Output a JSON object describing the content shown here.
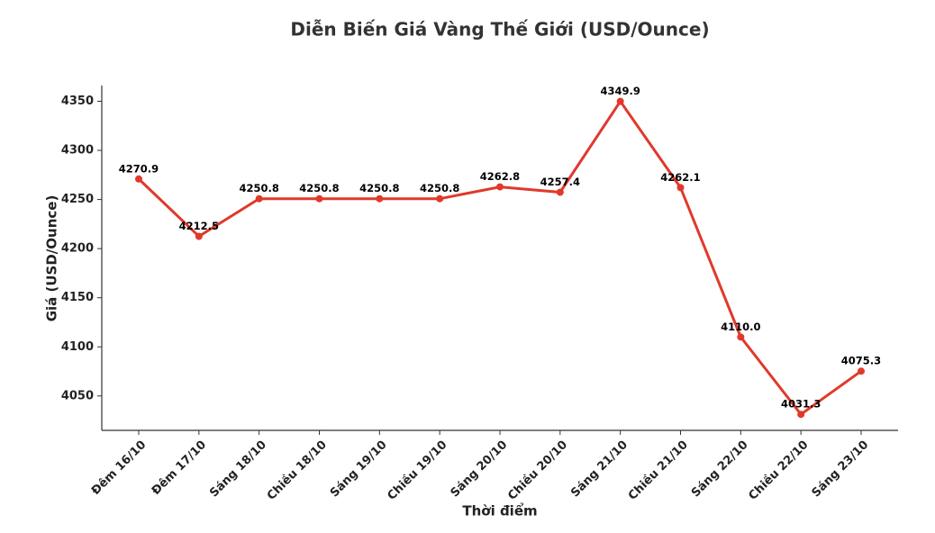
{
  "chart_data": {
    "type": "line",
    "title": "Diễn Biến Giá Vàng Thế Giới (USD/Ounce)",
    "x_label": "Thời điểm",
    "y_label": "Giá (USD/Ounce)",
    "categories": [
      "Đêm 16/10",
      "Đêm 17/10",
      "Sáng 18/10",
      "Chiều 18/10",
      "Sáng 19/10",
      "Chiều 19/10",
      "Sáng 20/10",
      "Chiều 20/10",
      "Sáng 21/10",
      "Chiều 21/10",
      "Sáng 22/10",
      "Chiều 22/10",
      "Sáng 23/10"
    ],
    "values": [
      4270.9,
      4212.5,
      4250.8,
      4250.8,
      4250.8,
      4250.8,
      4262.8,
      4257.4,
      4349.9,
      4262.1,
      4110.0,
      4031.3,
      4075.3
    ],
    "value_labels": [
      "4270.9",
      "4212.5",
      "4250.8",
      "4250.8",
      "4250.8",
      "4250.8",
      "4262.8",
      "4257.4",
      "4349.9",
      "4262.1",
      "4110.0",
      "4031.3",
      "4075.3"
    ],
    "color": "#e0392b",
    "ylim": [
      4015,
      4366
    ],
    "yticks": [
      4050,
      4100,
      4150,
      4200,
      4250,
      4300,
      4350
    ],
    "grid": false
  }
}
